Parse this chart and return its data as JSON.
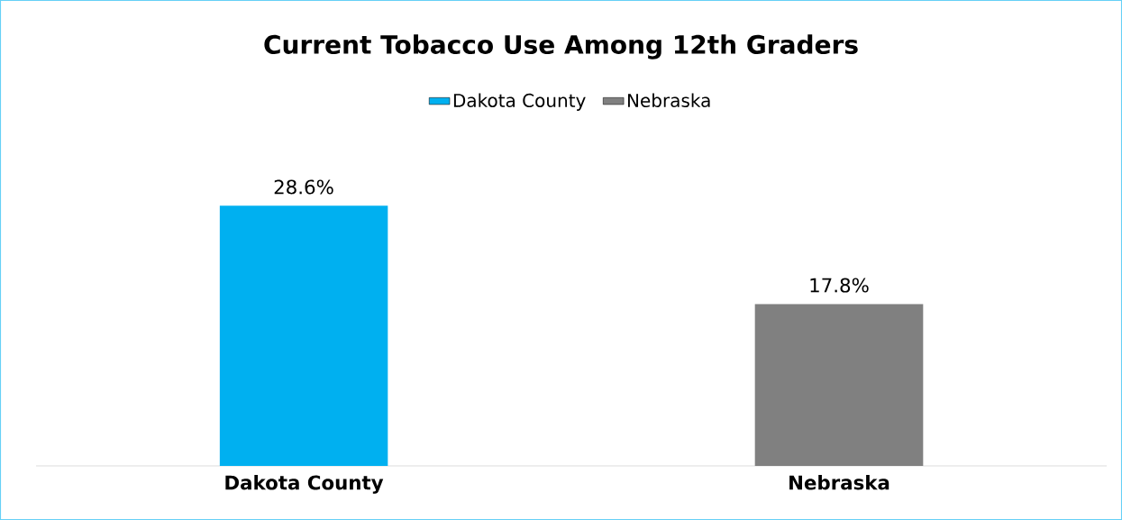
{
  "chart_data": {
    "type": "bar",
    "title": "Current Tobacco Use Among 12th Graders",
    "categories": [
      "Dakota County",
      "Nebraska"
    ],
    "series": [
      {
        "name": "Dakota County",
        "color": "#00b0f0",
        "values": [
          28.6,
          null
        ],
        "value_labels": [
          "28.6%",
          null
        ]
      },
      {
        "name": "Nebraska",
        "color": "#808080",
        "values": [
          null,
          17.8
        ],
        "value_labels": [
          null,
          "17.8%"
        ]
      }
    ],
    "legend": "top"
  }
}
